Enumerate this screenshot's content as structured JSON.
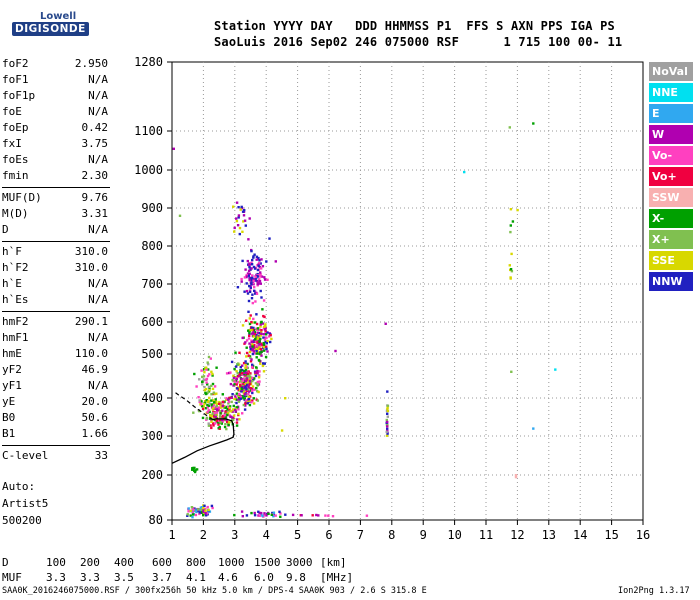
{
  "logo": {
    "top": "Lowell",
    "bottom": "DIGISONDE"
  },
  "header": {
    "line1": "Station YYYY DAY   DDD HHMMSS P1  FFS S AXN PPS IGA PS",
    "line2": "SaoLuis 2016 Sep02 246 075000 RSF      1 715 100 00- 11"
  },
  "params": [
    {
      "label": "foF2",
      "value": "2.950"
    },
    {
      "label": "foF1",
      "value": "N/A"
    },
    {
      "label": "foF1p",
      "value": "N/A"
    },
    {
      "label": "foE",
      "value": "N/A"
    },
    {
      "label": "foEp",
      "value": "0.42"
    },
    {
      "label": "fxI",
      "value": "3.75"
    },
    {
      "label": "foEs",
      "value": "N/A"
    },
    {
      "label": "fmin",
      "value": "2.30"
    },
    {
      "label": "MUF(D)",
      "value": "9.76"
    },
    {
      "label": "M(D)",
      "value": "3.31"
    },
    {
      "label": "D",
      "value": "N/A"
    },
    {
      "label": "h`F",
      "value": "310.0"
    },
    {
      "label": "h`F2",
      "value": "310.0"
    },
    {
      "label": "h`E",
      "value": "N/A"
    },
    {
      "label": "h`Es",
      "value": "N/A"
    },
    {
      "label": "hmF2",
      "value": "290.1"
    },
    {
      "label": "hmF1",
      "value": "N/A"
    },
    {
      "label": "hmE",
      "value": "110.0"
    },
    {
      "label": "yF2",
      "value": "46.9"
    },
    {
      "label": "yF1",
      "value": "N/A"
    },
    {
      "label": "yE",
      "value": "20.0"
    },
    {
      "label": "B0",
      "value": "50.6"
    },
    {
      "label": "B1",
      "value": "1.66"
    },
    {
      "label": "C-level",
      "value": "33"
    }
  ],
  "autoscaling": {
    "line1": "Auto:",
    "line2": "Artist5",
    "line3": "500200"
  },
  "legend": [
    {
      "label": "NoVal",
      "color": "#a0a0a0"
    },
    {
      "label": "NNE",
      "color": "#00e0f0"
    },
    {
      "label": "E",
      "color": "#30a8f0"
    },
    {
      "label": "W",
      "color": "#b000b0"
    },
    {
      "label": "Vo-",
      "color": "#ff40c0"
    },
    {
      "label": "Vo+",
      "color": "#f00040"
    },
    {
      "label": "SSW",
      "color": "#f8b0b0"
    },
    {
      "label": "X-",
      "color": "#00a000"
    },
    {
      "label": "X+",
      "color": "#80c050"
    },
    {
      "label": "SSE",
      "color": "#d8d800"
    },
    {
      "label": "NNW",
      "color": "#2020c0"
    }
  ],
  "muf_table": {
    "d_label": "D",
    "d_values": [
      "100",
      "200",
      "400",
      "600",
      "800",
      "1000",
      "1500",
      "3000"
    ],
    "d_unit": "[km]",
    "muf_label": "MUF",
    "muf_values": [
      "3.3",
      "3.3",
      "3.5",
      "3.7",
      "4.1",
      "4.6",
      "6.0",
      "9.8"
    ],
    "muf_unit": "[MHz]"
  },
  "footer": "SAA0K_2016246075000.RSF / 300fx256h 50 kHz 5.0 km / DPS-4 SAA0K 903 / 2.6 S 315.8 E",
  "version": "Ion2Png 1.3.17",
  "chart_data": {
    "type": "scatter",
    "title": "",
    "xlabel": "",
    "ylabel": "",
    "xlim": [
      1,
      16
    ],
    "x_ticks": [
      "1",
      "2",
      "3",
      "4",
      "5",
      "6",
      "7",
      "8",
      "9",
      "10",
      "11",
      "12",
      "13",
      "14",
      "15",
      "16"
    ],
    "y_ticks": [
      {
        "value": 80,
        "label": "80"
      },
      {
        "value": 200,
        "label": "200"
      },
      {
        "value": 300,
        "label": "300"
      },
      {
        "value": 400,
        "label": "400"
      },
      {
        "value": 500,
        "label": "500"
      },
      {
        "value": 600,
        "label": "600"
      },
      {
        "value": 700,
        "label": "700"
      },
      {
        "value": 800,
        "label": "800"
      },
      {
        "value": 900,
        "label": "900"
      },
      {
        "value": 1000,
        "label": "1000"
      },
      {
        "value": 1100,
        "label": "1100"
      },
      {
        "value": 1280,
        "label": "1280"
      }
    ],
    "grid": "dotted",
    "profile": [
      [
        1.0,
        230
      ],
      [
        1.4,
        245
      ],
      [
        1.8,
        262
      ],
      [
        2.2,
        275
      ],
      [
        2.5,
        283
      ],
      [
        2.75,
        290
      ],
      [
        2.95,
        297
      ],
      [
        2.97,
        305
      ],
      [
        2.95,
        330
      ],
      [
        2.9,
        340
      ],
      [
        2.7,
        345
      ],
      [
        2.55,
        345
      ],
      [
        2.4,
        345
      ],
      [
        2.3,
        343
      ]
    ],
    "profile_dashed": [
      [
        2.3,
        343
      ],
      [
        2.0,
        360
      ],
      [
        1.7,
        378
      ],
      [
        1.45,
        395
      ],
      [
        1.25,
        405
      ],
      [
        1.05,
        415
      ]
    ],
    "clusters": [
      {
        "cx": 3.6,
        "cy": 720,
        "sx": 0.35,
        "sy": 60,
        "n": 120,
        "colors": [
          "#2020c0",
          "#2020c0",
          "#b000b0",
          "#b000b0",
          "#ff40c0"
        ],
        "seed": 11
      },
      {
        "cx": 3.7,
        "cy": 540,
        "sx": 0.35,
        "sy": 70,
        "n": 200,
        "colors": [
          "#2020c0",
          "#b000b0",
          "#ff40c0",
          "#f00040",
          "#d8d800",
          "#00a000"
        ],
        "seed": 12
      },
      {
        "cx": 3.3,
        "cy": 430,
        "sx": 0.4,
        "sy": 50,
        "n": 260,
        "colors": [
          "#00a000",
          "#80c050",
          "#d8d800",
          "#ff40c0",
          "#f00040",
          "#2020c0",
          "#b000b0"
        ],
        "seed": 13
      },
      {
        "cx": 2.6,
        "cy": 360,
        "sx": 0.45,
        "sy": 35,
        "n": 200,
        "colors": [
          "#ff40c0",
          "#f00040",
          "#d8d800",
          "#00a000",
          "#b000b0",
          "#80c050"
        ],
        "seed": 14
      },
      {
        "cx": 2.1,
        "cy": 420,
        "sx": 0.3,
        "sy": 70,
        "n": 90,
        "colors": [
          "#00a000",
          "#80c050",
          "#d8d800",
          "#a0a0a0",
          "#ff40c0"
        ],
        "seed": 15
      },
      {
        "cx": 3.2,
        "cy": 880,
        "sx": 0.25,
        "sy": 60,
        "n": 25,
        "colors": [
          "#2020c0",
          "#d8d800",
          "#b000b0"
        ],
        "seed": 16
      },
      {
        "cx": 1.9,
        "cy": 105,
        "sx": 0.35,
        "sy": 12,
        "n": 80,
        "colors": [
          "#2020c0",
          "#00a000",
          "#80c050",
          "#30a8f0",
          "#d8d800",
          "#b000b0",
          "#ff40c0"
        ],
        "seed": 17
      },
      {
        "cx": 3.9,
        "cy": 95,
        "sx": 0.7,
        "sy": 6,
        "n": 35,
        "colors": [
          "#b000b0",
          "#ff40c0",
          "#2020c0",
          "#30a8f0",
          "#00a000"
        ],
        "seed": 18
      },
      {
        "cx": 5.6,
        "cy": 92,
        "sx": 0.6,
        "sy": 3,
        "n": 10,
        "colors": [
          "#ff40c0",
          "#b000b0",
          "#f00040"
        ],
        "seed": 19
      },
      {
        "cx": 1.7,
        "cy": 215,
        "sx": 0.1,
        "sy": 5,
        "n": 10,
        "colors": [
          "#00a000"
        ],
        "seed": 20
      },
      {
        "cx": 7.85,
        "cy": 340,
        "sx": 0.02,
        "sy": 35,
        "n": 22,
        "colors": [
          "#2020c0",
          "#d8d800",
          "#b000b0",
          "#a0a0a0",
          "#80c050"
        ],
        "seed": 21
      },
      {
        "cx": 11.8,
        "cy": 800,
        "sx": 0.05,
        "sy": 120,
        "n": 10,
        "colors": [
          "#00a000",
          "#80c050",
          "#d8d800"
        ],
        "seed": 22
      }
    ],
    "points": [
      {
        "x": 1.05,
        "y": 1055,
        "c": "#b000b0"
      },
      {
        "x": 1.25,
        "y": 880,
        "c": "#80c050"
      },
      {
        "x": 6.2,
        "y": 510,
        "c": "#b000b0"
      },
      {
        "x": 7.8,
        "y": 595,
        "c": "#b000b0"
      },
      {
        "x": 7.85,
        "y": 415,
        "c": "#2020c0"
      },
      {
        "x": 10.3,
        "y": 995,
        "c": "#00e0f0"
      },
      {
        "x": 11.75,
        "y": 1110,
        "c": "#80c050"
      },
      {
        "x": 12.5,
        "y": 1120,
        "c": "#00a000"
      },
      {
        "x": 11.85,
        "y": 865,
        "c": "#00a000"
      },
      {
        "x": 12.0,
        "y": 895,
        "c": "#d8d800"
      },
      {
        "x": 13.2,
        "y": 465,
        "c": "#00e0f0"
      },
      {
        "x": 12.5,
        "y": 320,
        "c": "#30a8f0"
      },
      {
        "x": 11.8,
        "y": 460,
        "c": "#80c050"
      },
      {
        "x": 11.95,
        "y": 195,
        "c": "#f8b0b0"
      },
      {
        "x": 11.95,
        "y": 200,
        "c": "#f8b0b0"
      },
      {
        "x": 7.2,
        "y": 92,
        "c": "#ff40c0"
      },
      {
        "x": 4.5,
        "y": 315,
        "c": "#d8d800"
      },
      {
        "x": 4.6,
        "y": 400,
        "c": "#d8d800"
      },
      {
        "x": 4.3,
        "y": 760,
        "c": "#b000b0"
      },
      {
        "x": 4.1,
        "y": 820,
        "c": "#2020c0"
      }
    ]
  }
}
